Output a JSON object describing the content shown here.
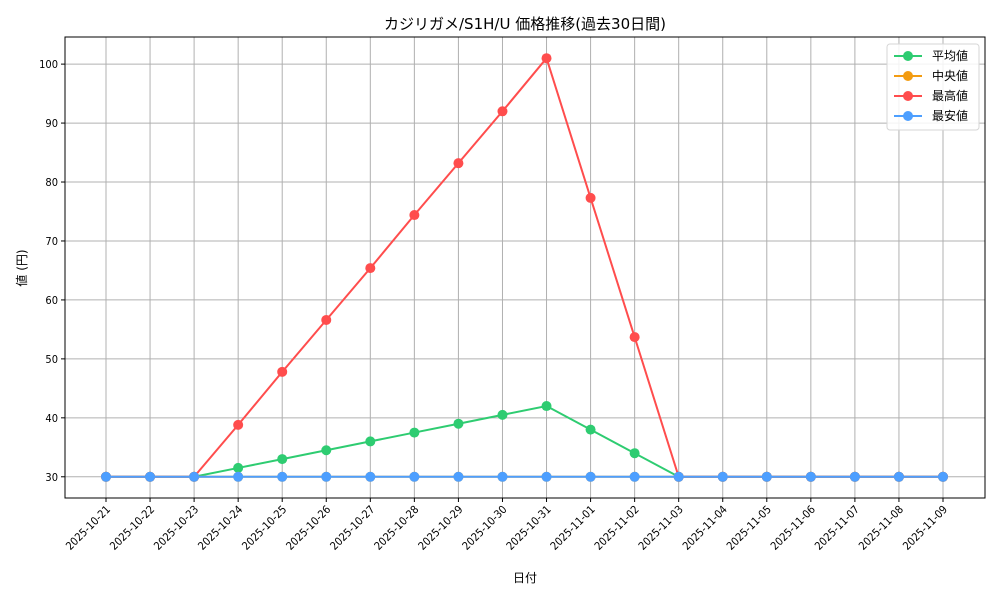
{
  "chart_data": {
    "type": "line",
    "title": "カジリガメ/S1H/U 価格推移(過去30日間)",
    "xlabel": "日付",
    "ylabel": "値 (円)",
    "x": [
      "2025-10-21",
      "2025-10-22",
      "2025-10-23",
      "2025-10-24",
      "2025-10-25",
      "2025-10-26",
      "2025-10-27",
      "2025-10-28",
      "2025-10-29",
      "2025-10-30",
      "2025-10-31",
      "2025-11-01",
      "2025-11-02",
      "2025-11-03",
      "2025-11-04",
      "2025-11-05",
      "2025-11-06",
      "2025-11-07",
      "2025-11-08",
      "2025-11-09"
    ],
    "yticks": [
      30,
      40,
      50,
      60,
      70,
      80,
      90,
      100
    ],
    "ylim": [
      26.4,
      104.6
    ],
    "grid": true,
    "legend_position": "upper right",
    "series": [
      {
        "name": "平均値",
        "color": "#2ecc71",
        "values": [
          30,
          30,
          30,
          31.5,
          33,
          34.5,
          36,
          37.5,
          39,
          40.5,
          42,
          38,
          34,
          30,
          30,
          30,
          30,
          30,
          30,
          30
        ]
      },
      {
        "name": "中央値",
        "color": "#f39c12",
        "values": [
          30,
          30,
          30,
          30,
          30,
          30,
          30,
          30,
          30,
          30,
          30,
          30,
          30,
          30,
          30,
          30,
          30,
          30,
          30,
          30
        ]
      },
      {
        "name": "最高値",
        "color": "#ff4d4d",
        "values": [
          30,
          30,
          30,
          38.8,
          47.8,
          56.6,
          65.4,
          74.4,
          83.2,
          92,
          101,
          77.3,
          53.7,
          30,
          30,
          30,
          30,
          30,
          30,
          30
        ]
      },
      {
        "name": "最安値",
        "color": "#4d9fff",
        "values": [
          30,
          30,
          30,
          30,
          30,
          30,
          30,
          30,
          30,
          30,
          30,
          30,
          30,
          30,
          30,
          30,
          30,
          30,
          30,
          30
        ]
      }
    ]
  }
}
